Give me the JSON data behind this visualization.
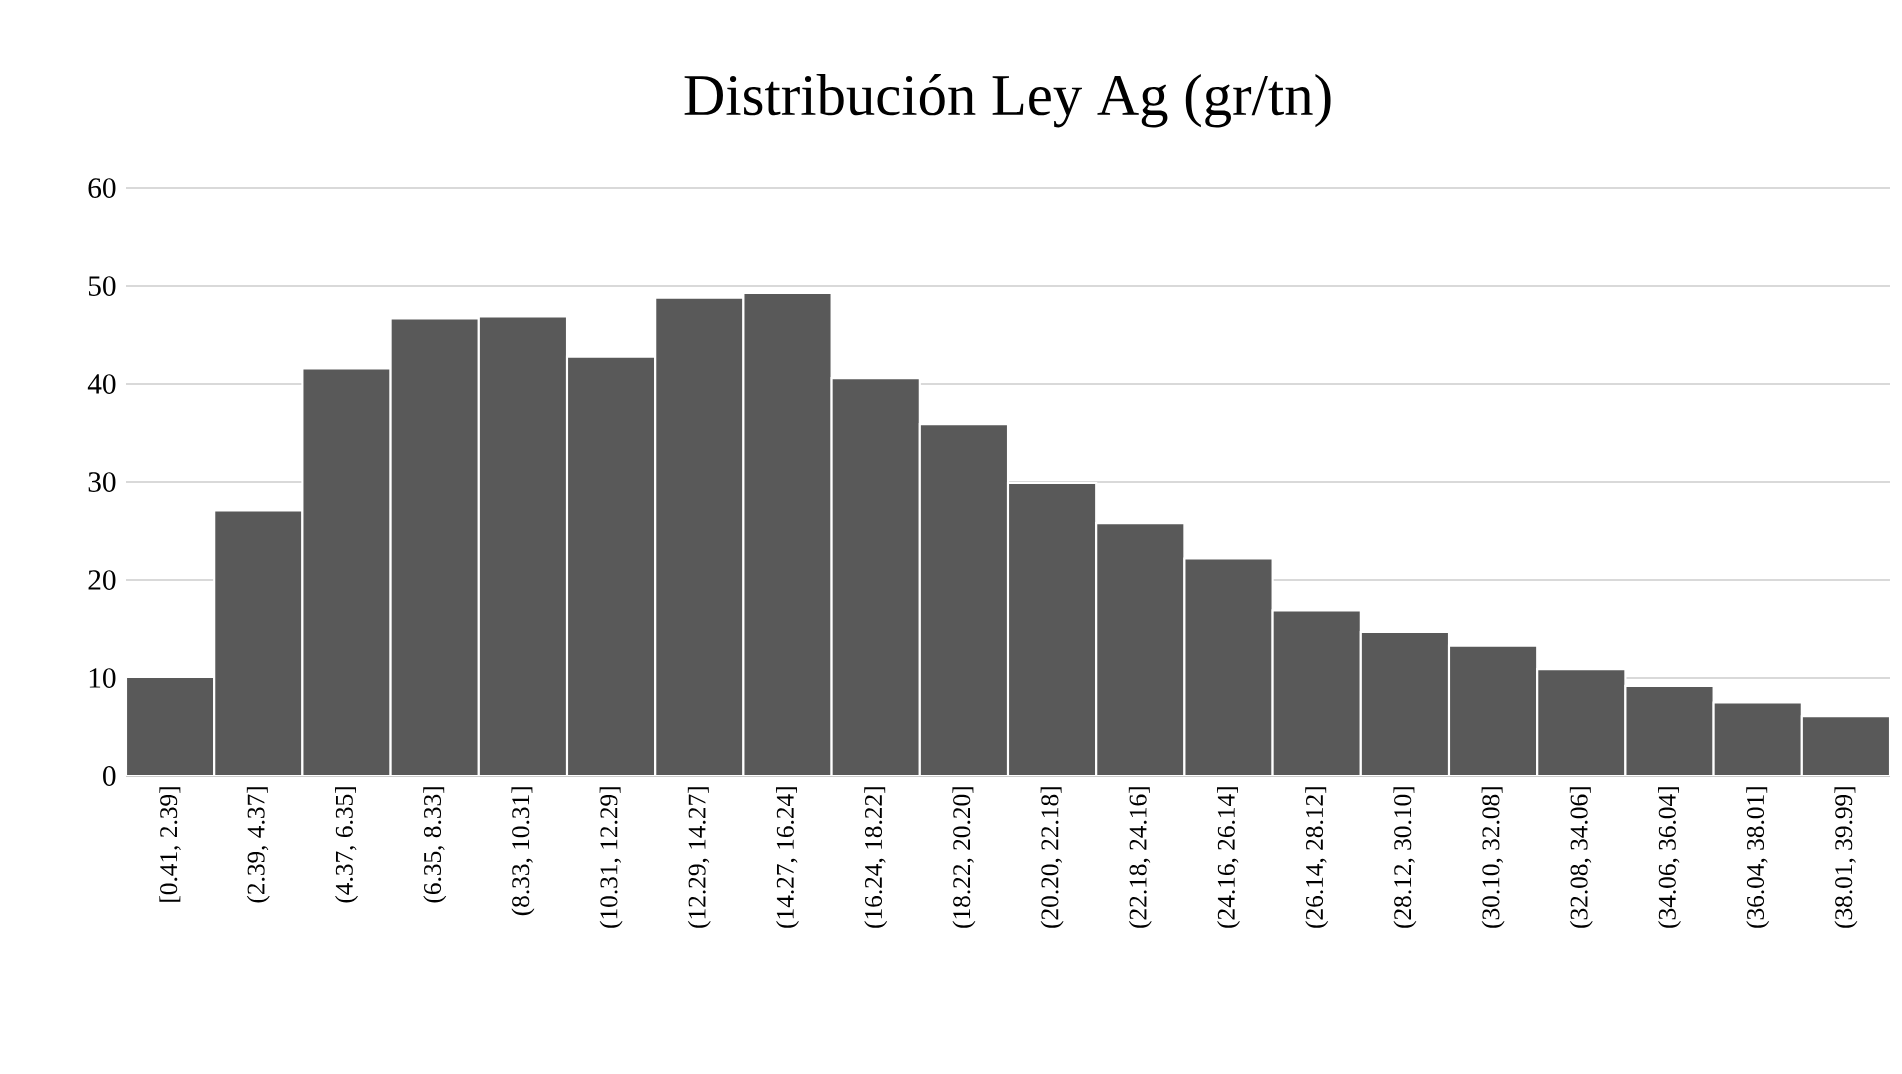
{
  "chart_data": {
    "type": "bar",
    "title": "Distribución Ley Ag (gr/tn)",
    "categories": [
      "[0.41, 2.39]",
      "(2.39, 4.37]",
      "(4.37, 6.35]",
      "(6.35, 8.33]",
      "(8.33, 10.31]",
      "(10.31, 12.29]",
      "(12.29, 14.27]",
      "(14.27, 16.24]",
      "(16.24, 18.22]",
      "(18.22, 20.20]",
      "(20.20, 22.18]",
      "(22.18, 24.16]",
      "(24.16, 26.14]",
      "(26.14, 28.12]",
      "(28.12, 30.10]",
      "(30.10, 32.08]",
      "(32.08, 34.06]",
      "(34.06, 36.04]",
      "(36.04, 38.01]",
      "(38.01, 39.99]"
    ],
    "values": [
      10.1,
      27.1,
      41.6,
      46.7,
      46.9,
      42.8,
      48.8,
      49.3,
      40.6,
      35.9,
      29.9,
      25.8,
      22.2,
      16.9,
      14.7,
      13.3,
      10.9,
      9.2,
      7.5,
      6.1
    ],
    "color": "#595959",
    "ylim": [
      0,
      60
    ],
    "yticks": [
      0,
      10,
      20,
      30,
      40,
      50,
      60
    ],
    "grid": "y"
  }
}
